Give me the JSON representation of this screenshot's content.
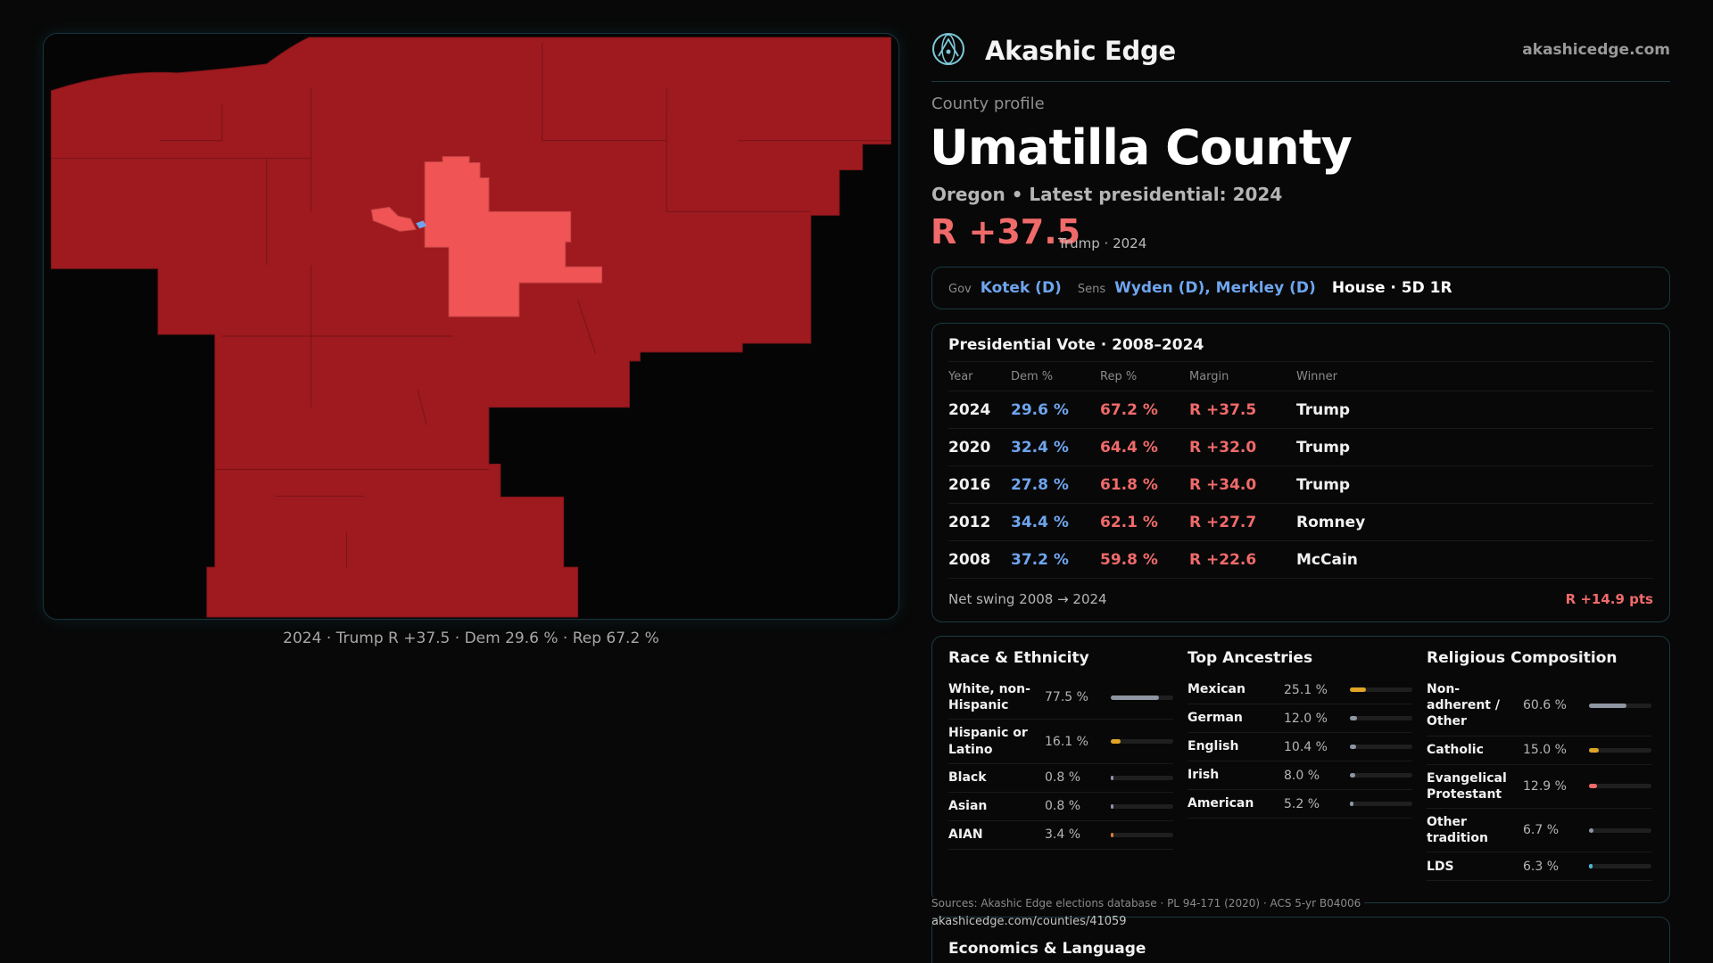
{
  "map": {
    "caption": "2024 · Trump R +37.5 · Dem 29.6 % · Rep 67.2 %",
    "colors": {
      "strong_rep": "#9e1a1f",
      "lean_rep": "#f05454",
      "dem": "#6ea5ee",
      "background": "#050505"
    }
  },
  "header": {
    "brand": "Akashic Edge",
    "logo_icon": "atom-globe-icon",
    "site": "akashicedge.com"
  },
  "profile": {
    "kicker": "County profile",
    "title": "Umatilla County",
    "subtitle": "Oregon • Latest presidential: 2024",
    "margin": "R +37.5",
    "margin_note": "Trump · 2024"
  },
  "officials": {
    "gov_label": "Gov",
    "gov": "Kotek (D)",
    "sens_label": "Sens",
    "sens": "Wyden (D), Merkley (D)",
    "house": "House · 5D 1R"
  },
  "presidential": {
    "title": "Presidential Vote · 2008–2024",
    "headers": [
      "Year",
      "Dem %",
      "Rep %",
      "Margin",
      "Winner"
    ],
    "rows": [
      {
        "year": "2024",
        "dem": "29.6 %",
        "rep": "67.2 %",
        "margin": "R +37.5",
        "winner": "Trump"
      },
      {
        "year": "2020",
        "dem": "32.4 %",
        "rep": "64.4 %",
        "margin": "R +32.0",
        "winner": "Trump"
      },
      {
        "year": "2016",
        "dem": "27.8 %",
        "rep": "61.8 %",
        "margin": "R +34.0",
        "winner": "Trump"
      },
      {
        "year": "2012",
        "dem": "34.4 %",
        "rep": "62.1 %",
        "margin": "R +27.7",
        "winner": "Romney"
      },
      {
        "year": "2008",
        "dem": "37.2 %",
        "rep": "59.8 %",
        "margin": "R +22.6",
        "winner": "McCain"
      }
    ],
    "swing_label": "Net swing 2008 → 2024",
    "swing_value": "R +14.9 pts"
  },
  "demographics": {
    "race": {
      "title": "Race & Ethnicity",
      "items": [
        {
          "label": "White, non-Hispanic",
          "pct": "77.5 %",
          "share": 0.775,
          "color": "#8e96a3"
        },
        {
          "label": "Hispanic or Latino",
          "pct": "16.1 %",
          "share": 0.161,
          "color": "#e0a526"
        },
        {
          "label": "Black",
          "pct": "0.8 %",
          "share": 0.008,
          "color": "#8e96a3"
        },
        {
          "label": "Asian",
          "pct": "0.8 %",
          "share": 0.008,
          "color": "#8e96a3"
        },
        {
          "label": "AIAN",
          "pct": "3.4 %",
          "share": 0.034,
          "color": "#e07a3a"
        }
      ]
    },
    "ancestry": {
      "title": "Top Ancestries",
      "items": [
        {
          "label": "Mexican",
          "pct": "25.1 %",
          "share": 0.251,
          "color": "#e0a526"
        },
        {
          "label": "German",
          "pct": "12.0 %",
          "share": 0.12,
          "color": "#8e96a3"
        },
        {
          "label": "English",
          "pct": "10.4 %",
          "share": 0.104,
          "color": "#8e96a3"
        },
        {
          "label": "Irish",
          "pct": "8.0 %",
          "share": 0.08,
          "color": "#8e96a3"
        },
        {
          "label": "American",
          "pct": "5.2 %",
          "share": 0.052,
          "color": "#8e96a3"
        }
      ]
    },
    "religion": {
      "title": "Religious Composition",
      "items": [
        {
          "label": "Non-adherent / Other",
          "pct": "60.6 %",
          "share": 0.606,
          "color": "#8e96a3"
        },
        {
          "label": "Catholic",
          "pct": "15.0 %",
          "share": 0.15,
          "color": "#e0a526"
        },
        {
          "label": "Evangelical Protestant",
          "pct": "12.9 %",
          "share": 0.129,
          "color": "#f06a6a"
        },
        {
          "label": "Other tradition",
          "pct": "6.7 %",
          "share": 0.067,
          "color": "#8e96a3"
        },
        {
          "label": "LDS",
          "pct": "6.3 %",
          "share": 0.063,
          "color": "#4fb6d6"
        }
      ]
    }
  },
  "footer": {
    "sources": "Sources: Akashic Edge elections database · PL 94-171 (2020) · ACS 5-yr B04006",
    "url": "akashicedge.com/counties/41059"
  },
  "economics": {
    "title": "Economics & Language"
  }
}
